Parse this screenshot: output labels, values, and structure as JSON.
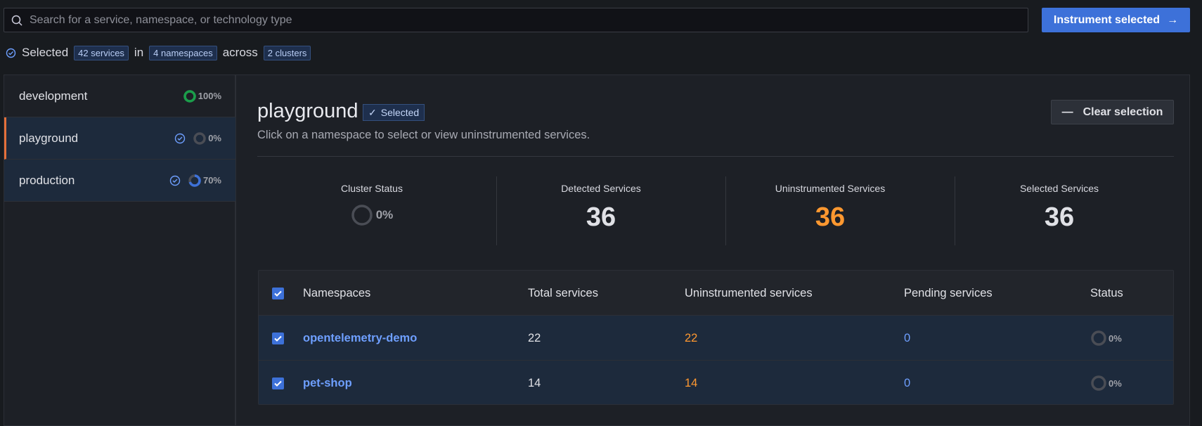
{
  "search": {
    "placeholder": "Search for a service, namespace, or technology type"
  },
  "instrument_button": "Instrument selected",
  "selection_summary": {
    "prefix": "Selected",
    "services": "42 services",
    "in": "in",
    "namespaces": "4 namespaces",
    "across": "across",
    "clusters": "2 clusters"
  },
  "clusters": [
    {
      "name": "development",
      "selected": false,
      "percent": {
        "value": 100,
        "label": "100%"
      },
      "color": "#1a9e4a"
    },
    {
      "name": "playground",
      "selected": true,
      "active": true,
      "percent": {
        "value": 0,
        "label": "0%"
      },
      "color": "#e0457b"
    },
    {
      "name": "production",
      "selected": true,
      "percent": {
        "value": 70,
        "label": "70%"
      },
      "color": "#3d71d9"
    }
  ],
  "detail": {
    "title": "playground",
    "badge": "Selected",
    "subtitle": "Click on a namespace to select or view uninstrumented services.",
    "clear_button": "Clear selection",
    "stats": [
      {
        "label": "Cluster Status",
        "value": 0,
        "value_label": "0%",
        "kind": "donut"
      },
      {
        "label": "Detected Services",
        "value": 36
      },
      {
        "label": "Uninstrumented Services",
        "value": 36,
        "color": "#ff9830"
      },
      {
        "label": "Selected Services",
        "value": 36
      }
    ]
  },
  "table": {
    "columns": [
      "Namespaces",
      "Total services",
      "Uninstrumented services",
      "Pending services",
      "Status"
    ],
    "rows": [
      {
        "namespace": "opentelemetry-demo",
        "total": 22,
        "uninstrumented": 22,
        "pending": 0,
        "status": {
          "value": 0,
          "label": "0%"
        }
      },
      {
        "namespace": "pet-shop",
        "total": 14,
        "uninstrumented": 14,
        "pending": 0,
        "status": {
          "value": 0,
          "label": "0%"
        }
      }
    ]
  }
}
